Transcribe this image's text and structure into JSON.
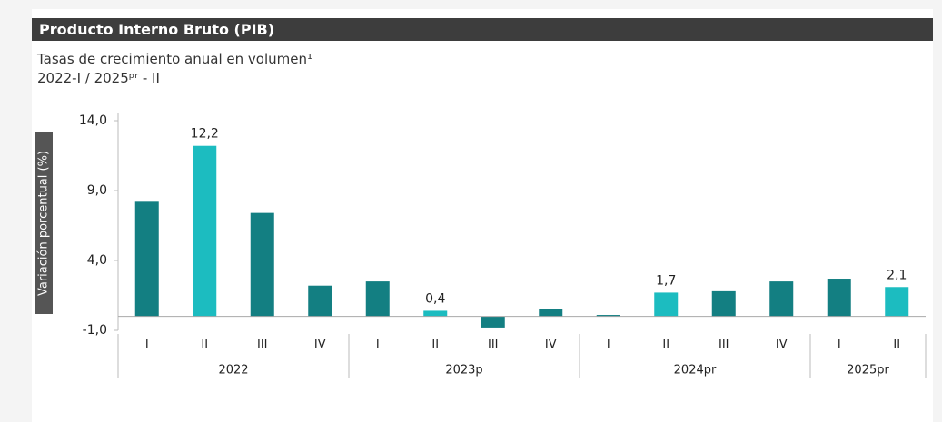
{
  "chart_data": {
    "type": "bar",
    "title": "Producto Interno Bruto (PIB)",
    "subtitle": [
      "Tasas de crecimiento anual en volumen¹",
      "2022-I / 2025ᵖʳ - II"
    ],
    "y_label": "Variación porcentual (%)",
    "categories": [
      "I",
      "II",
      "III",
      "IV",
      "I",
      "II",
      "III",
      "IV",
      "I",
      "II",
      "III",
      "IV",
      "I",
      "II"
    ],
    "groups": [
      {
        "name": "2022",
        "span": 4
      },
      {
        "name": "2023p",
        "span": 4
      },
      {
        "name": "2024pr",
        "span": 4
      },
      {
        "name": "2025pr",
        "span": 2
      }
    ],
    "values": [
      8.2,
      12.2,
      7.4,
      2.2,
      2.5,
      0.4,
      -0.8,
      0.5,
      0.1,
      1.7,
      1.8,
      2.5,
      2.7,
      2.1
    ],
    "value_labels": [
      null,
      "12,2",
      null,
      null,
      null,
      "0,4",
      null,
      null,
      null,
      "1,7",
      null,
      null,
      null,
      "2,1"
    ],
    "colors": [
      "#137f82",
      "#1cbcc0",
      "#137f82",
      "#137f82",
      "#137f82",
      "#1cbcc0",
      "#137f82",
      "#137f82",
      "#137f82",
      "#1cbcc0",
      "#137f82",
      "#137f82",
      "#137f82",
      "#1cbcc0"
    ],
    "ylim": [
      -1,
      14
    ],
    "yticks": [
      {
        "value": -1,
        "label": "-1,0"
      },
      {
        "value": 4,
        "label": "4,0"
      },
      {
        "value": 9,
        "label": "9,0"
      },
      {
        "value": 14,
        "label": "14,0"
      }
    ],
    "grid": false
  }
}
